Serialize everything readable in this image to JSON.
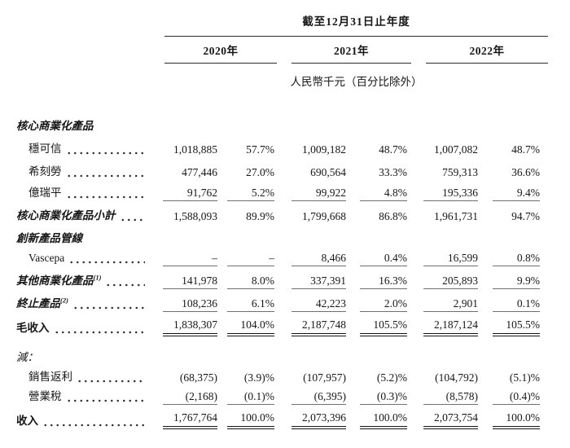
{
  "header": {
    "period_title": "截至12月31日止年度",
    "years": {
      "y2020": "2020年",
      "y2021": "2021年",
      "y2022": "2022年"
    },
    "unit_note": "人民幣千元（百分比除外）"
  },
  "table": {
    "rows": [
      {
        "label": "核心商業化產品"
      },
      {
        "label": "穩可信",
        "v": [
          "1,018,885",
          "57.7%",
          "1,009,182",
          "48.7%",
          "1,007,082",
          "48.7%"
        ]
      },
      {
        "label": "希刻勞",
        "v": [
          "477,446",
          "27.0%",
          "690,564",
          "33.3%",
          "759,313",
          "36.6%"
        ]
      },
      {
        "label": "億瑞平",
        "v": [
          "91,762",
          "5.2%",
          "99,922",
          "4.8%",
          "195,336",
          "9.4%"
        ]
      },
      {
        "label": "核心商業化產品小計",
        "v": [
          "1,588,093",
          "89.9%",
          "1,799,668",
          "86.8%",
          "1,961,731",
          "94.7%"
        ]
      },
      {
        "label": "創新產品管線"
      },
      {
        "label": "Vascepa",
        "v": [
          "–",
          "–",
          "8,466",
          "0.4%",
          "16,599",
          "0.8%"
        ]
      },
      {
        "label": "其他商業化產品",
        "sup": "(1)",
        "v": [
          "141,978",
          "8.0%",
          "337,391",
          "16.3%",
          "205,893",
          "9.9%"
        ]
      },
      {
        "label": "終止產品",
        "sup": "(2)",
        "v": [
          "108,236",
          "6.1%",
          "42,223",
          "2.0%",
          "2,901",
          "0.1%"
        ]
      },
      {
        "label": "毛收入",
        "v": [
          "1,838,307",
          "104.0%",
          "2,187,748",
          "105.5%",
          "2,187,124",
          "105.5%"
        ]
      },
      {
        "label": "減："
      },
      {
        "label": "銷售返利",
        "v": [
          "(68,375)",
          "(3.9)%",
          "(107,957)",
          "(5.2)%",
          "(104,792)",
          "(5.1)%"
        ]
      },
      {
        "label": "營業稅",
        "v": [
          "(2,168)",
          "(0.1)%",
          "(6,395)",
          "(0.3)%",
          "(8,578)",
          "(0.4)%"
        ]
      },
      {
        "label": "收入",
        "v": [
          "1,767,764",
          "100.0%",
          "2,073,396",
          "100.0%",
          "2,073,754",
          "100.0%"
        ]
      }
    ]
  }
}
